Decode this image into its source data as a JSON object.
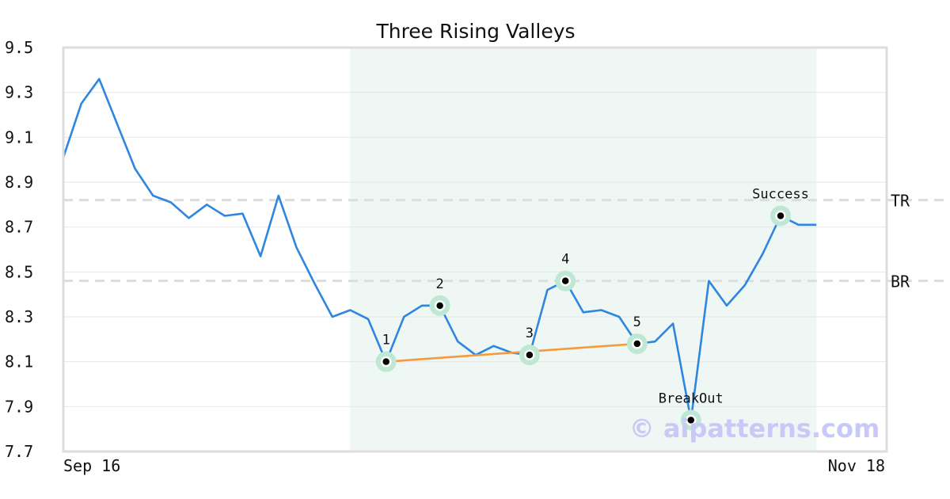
{
  "chart_data": {
    "type": "line",
    "title": "Three Rising Valleys",
    "xlabel": "",
    "ylabel": "",
    "ylim": [
      7.7,
      9.5
    ],
    "yticks": [
      "7.7",
      "7.9",
      "8.1",
      "8.3",
      "8.5",
      "8.7",
      "8.9",
      "9.1",
      "9.3",
      "9.5"
    ],
    "xtick_labels": [
      "Sep 16",
      "Nov 18"
    ],
    "grid": "horizontal",
    "series": [
      {
        "color": "#2e86de",
        "values": [
          9.01,
          9.25,
          9.36,
          9.16,
          8.96,
          8.84,
          8.81,
          8.74,
          8.8,
          8.75,
          8.76,
          8.57,
          8.84,
          8.61,
          8.45,
          8.3,
          8.33,
          8.29,
          8.1,
          8.3,
          8.35,
          8.35,
          8.19,
          8.13,
          8.17,
          8.14,
          8.13,
          8.42,
          8.46,
          8.32,
          8.33,
          8.3,
          8.18,
          8.19,
          8.27,
          7.84,
          8.46,
          8.35,
          8.44,
          8.58,
          8.75,
          8.71,
          8.71
        ]
      }
    ],
    "pattern_region": {
      "start_index": 16,
      "end_index": 42,
      "color": "#eef7f3"
    },
    "levels": [
      {
        "label": "TR",
        "value": 8.82
      },
      {
        "label": "BR",
        "value": 8.46
      }
    ],
    "trendline": {
      "from_index": 18,
      "to_index": 32,
      "from_value": 8.1,
      "to_value": 8.18,
      "color": "#f79a3e"
    },
    "points": [
      {
        "label": "1",
        "index": 18,
        "value": 8.1
      },
      {
        "label": "2",
        "index": 21,
        "value": 8.35
      },
      {
        "label": "3",
        "index": 26,
        "value": 8.13
      },
      {
        "label": "4",
        "index": 28,
        "value": 8.46
      },
      {
        "label": "5",
        "index": 32,
        "value": 8.18
      },
      {
        "label": "BreakOut",
        "index": 35,
        "value": 7.84
      },
      {
        "label": "Success",
        "index": 40,
        "value": 8.75
      }
    ],
    "watermark": "© aipatterns.com"
  }
}
